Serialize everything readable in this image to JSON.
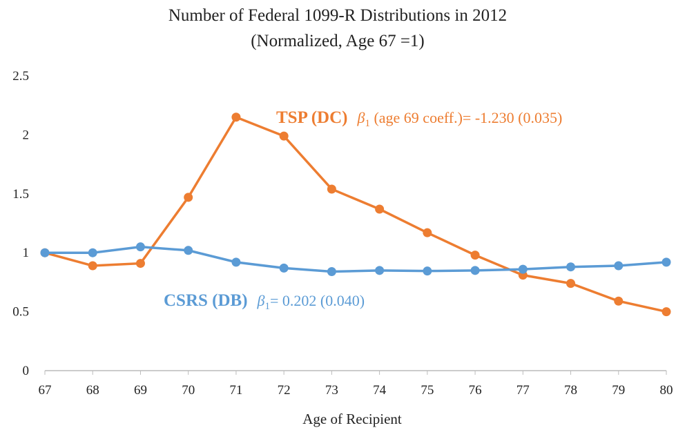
{
  "chart_data": {
    "type": "line",
    "title": "Number of Federal 1099-R Distributions in 2012",
    "subtitle": "(Normalized, Age 67 =1)",
    "x_label": "Age of Recipient",
    "x": [
      67,
      68,
      69,
      70,
      71,
      72,
      73,
      74,
      75,
      76,
      77,
      78,
      79,
      80
    ],
    "xlim": [
      67,
      80
    ],
    "xticks": [
      67,
      68,
      69,
      70,
      71,
      72,
      73,
      74,
      75,
      76,
      77,
      78,
      79,
      80
    ],
    "ylim": [
      0,
      2.5
    ],
    "yticks": [
      0,
      0.5,
      1,
      1.5,
      2,
      2.5
    ],
    "grid": false,
    "series": [
      {
        "name": "TSP (DC)",
        "color": "#ed7d31",
        "values": [
          1,
          0.89,
          0.91,
          1.47,
          2.15,
          1.99,
          1.54,
          1.37,
          1.17,
          0.98,
          0.81,
          0.74,
          0.59,
          0.5
        ],
        "annotation": {
          "beta": "β",
          "sub": "1",
          "text": " (age 69 coeff.)= -1.230 (0.035)"
        }
      },
      {
        "name": "CSRS (DB)",
        "color": "#5b9bd5",
        "values": [
          1,
          1.0,
          1.05,
          1.02,
          0.92,
          0.87,
          0.84,
          0.85,
          0.845,
          0.85,
          0.86,
          0.88,
          0.89,
          0.92
        ],
        "annotation": {
          "beta": "β",
          "sub": "1",
          "text": "= 0.202 (0.040)"
        }
      }
    ]
  }
}
